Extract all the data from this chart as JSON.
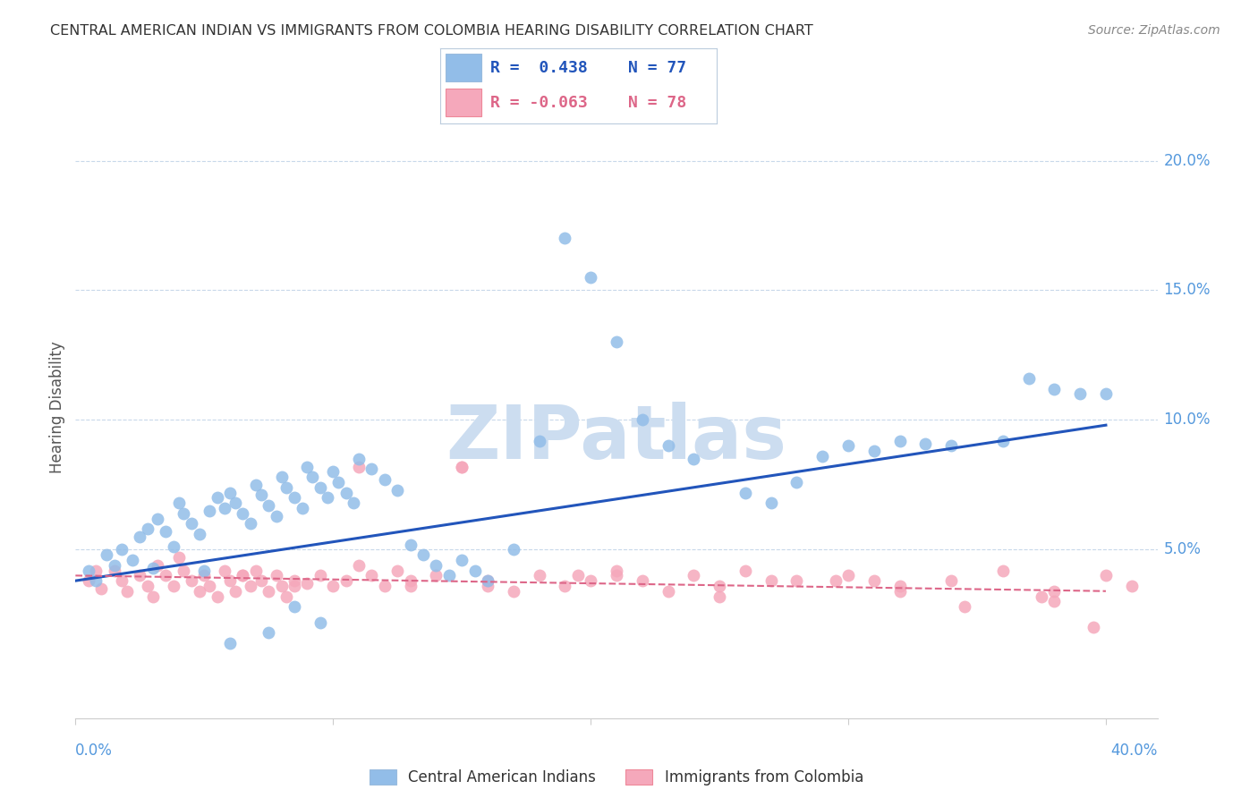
{
  "title": "CENTRAL AMERICAN INDIAN VS IMMIGRANTS FROM COLOMBIA HEARING DISABILITY CORRELATION CHART",
  "source": "Source: ZipAtlas.com",
  "ylabel": "Hearing Disability",
  "ytick_labels": [
    "20.0%",
    "15.0%",
    "10.0%",
    "5.0%"
  ],
  "ytick_values": [
    0.2,
    0.15,
    0.1,
    0.05
  ],
  "xlim": [
    0.0,
    0.42
  ],
  "ylim": [
    -0.015,
    0.225
  ],
  "legend_blue_r": "R =  0.438",
  "legend_blue_n": "N = 77",
  "legend_pink_r": "R = -0.063",
  "legend_pink_n": "N = 78",
  "legend_label_blue": "Central American Indians",
  "legend_label_pink": "Immigrants from Colombia",
  "blue_color": "#92bde8",
  "pink_color": "#f5a8bb",
  "line_blue_color": "#2255bb",
  "line_pink_color": "#dd6688",
  "watermark_text": "ZIPatlas",
  "watermark_color": "#ccddf0",
  "background_color": "#ffffff",
  "grid_color": "#c8d8ea",
  "title_color": "#333333",
  "axis_tick_color": "#5599dd",
  "ylabel_color": "#555555",
  "source_color": "#888888",
  "blue_scatter_x": [
    0.005,
    0.008,
    0.012,
    0.015,
    0.018,
    0.022,
    0.025,
    0.028,
    0.03,
    0.032,
    0.035,
    0.038,
    0.04,
    0.042,
    0.045,
    0.048,
    0.05,
    0.052,
    0.055,
    0.058,
    0.06,
    0.062,
    0.065,
    0.068,
    0.07,
    0.072,
    0.075,
    0.078,
    0.08,
    0.082,
    0.085,
    0.088,
    0.09,
    0.092,
    0.095,
    0.098,
    0.1,
    0.102,
    0.105,
    0.108,
    0.11,
    0.115,
    0.12,
    0.125,
    0.13,
    0.135,
    0.14,
    0.145,
    0.15,
    0.155,
    0.16,
    0.17,
    0.18,
    0.19,
    0.2,
    0.21,
    0.22,
    0.23,
    0.24,
    0.26,
    0.27,
    0.28,
    0.29,
    0.3,
    0.31,
    0.32,
    0.33,
    0.34,
    0.36,
    0.37,
    0.38,
    0.39,
    0.4,
    0.085,
    0.095,
    0.075,
    0.06
  ],
  "blue_scatter_y": [
    0.042,
    0.038,
    0.048,
    0.044,
    0.05,
    0.046,
    0.055,
    0.058,
    0.043,
    0.062,
    0.057,
    0.051,
    0.068,
    0.064,
    0.06,
    0.056,
    0.042,
    0.065,
    0.07,
    0.066,
    0.072,
    0.068,
    0.064,
    0.06,
    0.075,
    0.071,
    0.067,
    0.063,
    0.078,
    0.074,
    0.07,
    0.066,
    0.082,
    0.078,
    0.074,
    0.07,
    0.08,
    0.076,
    0.072,
    0.068,
    0.085,
    0.081,
    0.077,
    0.073,
    0.052,
    0.048,
    0.044,
    0.04,
    0.046,
    0.042,
    0.038,
    0.05,
    0.092,
    0.17,
    0.155,
    0.13,
    0.1,
    0.09,
    0.085,
    0.072,
    0.068,
    0.076,
    0.086,
    0.09,
    0.088,
    0.092,
    0.091,
    0.09,
    0.092,
    0.116,
    0.112,
    0.11,
    0.11,
    0.028,
    0.022,
    0.018,
    0.014
  ],
  "pink_scatter_x": [
    0.005,
    0.008,
    0.01,
    0.015,
    0.018,
    0.02,
    0.025,
    0.028,
    0.03,
    0.032,
    0.035,
    0.038,
    0.04,
    0.042,
    0.045,
    0.048,
    0.05,
    0.052,
    0.055,
    0.058,
    0.06,
    0.062,
    0.065,
    0.068,
    0.07,
    0.072,
    0.075,
    0.078,
    0.08,
    0.082,
    0.085,
    0.09,
    0.095,
    0.1,
    0.105,
    0.11,
    0.115,
    0.12,
    0.125,
    0.13,
    0.14,
    0.15,
    0.16,
    0.17,
    0.18,
    0.19,
    0.2,
    0.21,
    0.22,
    0.23,
    0.24,
    0.25,
    0.26,
    0.28,
    0.3,
    0.32,
    0.34,
    0.36,
    0.38,
    0.4,
    0.13,
    0.15,
    0.195,
    0.25,
    0.295,
    0.32,
    0.065,
    0.085,
    0.11,
    0.16,
    0.345,
    0.38,
    0.21,
    0.27,
    0.31,
    0.375,
    0.395,
    0.41
  ],
  "pink_scatter_y": [
    0.038,
    0.042,
    0.035,
    0.042,
    0.038,
    0.034,
    0.04,
    0.036,
    0.032,
    0.044,
    0.04,
    0.036,
    0.047,
    0.042,
    0.038,
    0.034,
    0.04,
    0.036,
    0.032,
    0.042,
    0.038,
    0.034,
    0.04,
    0.036,
    0.042,
    0.038,
    0.034,
    0.04,
    0.036,
    0.032,
    0.038,
    0.037,
    0.04,
    0.036,
    0.038,
    0.044,
    0.04,
    0.036,
    0.042,
    0.038,
    0.04,
    0.082,
    0.038,
    0.034,
    0.04,
    0.036,
    0.038,
    0.042,
    0.038,
    0.034,
    0.04,
    0.036,
    0.042,
    0.038,
    0.04,
    0.036,
    0.038,
    0.042,
    0.034,
    0.04,
    0.036,
    0.082,
    0.04,
    0.032,
    0.038,
    0.034,
    0.04,
    0.036,
    0.082,
    0.036,
    0.028,
    0.03,
    0.04,
    0.038,
    0.038,
    0.032,
    0.02,
    0.036
  ],
  "blue_line_x": [
    0.0,
    0.4
  ],
  "blue_line_y": [
    0.038,
    0.098
  ],
  "pink_line_x": [
    0.0,
    0.4
  ],
  "pink_line_y": [
    0.04,
    0.034
  ]
}
